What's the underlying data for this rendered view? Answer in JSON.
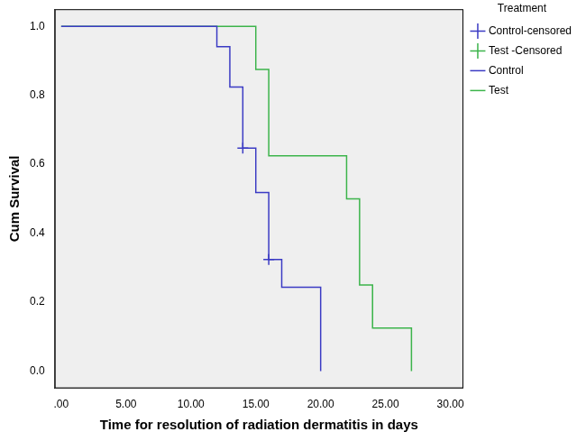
{
  "chart_data": {
    "type": "step",
    "x_label": "Time for resolution of radiation dermatitis in days",
    "y_label": "Cum Survival",
    "legend_title": "Treatment",
    "legend": "right",
    "grid": false,
    "xlim": [
      -0.5,
      31
    ],
    "xticks": [
      {
        "value": 0,
        "label": ".00"
      },
      {
        "value": 5,
        "label": "5.00"
      },
      {
        "value": 10,
        "label": "10.00"
      },
      {
        "value": 15,
        "label": "15.00"
      },
      {
        "value": 20,
        "label": "20.00"
      },
      {
        "value": 25,
        "label": "25.00"
      },
      {
        "value": 30,
        "label": "30.00"
      }
    ],
    "ylim": [
      -0.05,
      1.05
    ],
    "yticks": [
      {
        "value": 0,
        "label": "0.0"
      },
      0.2,
      0.4,
      0.6,
      0.8,
      {
        "value": 1,
        "label": "1.0"
      }
    ],
    "series": [
      {
        "name": "Control",
        "type": "step",
        "color": "#3b3bc4",
        "x": [
          0,
          12,
          13,
          14,
          15,
          16,
          17,
          20
        ],
        "values": [
          1,
          0.941,
          0.824,
          0.647,
          0.518,
          0.324,
          0.243,
          0
        ]
      },
      {
        "name": "Test",
        "type": "step",
        "color": "#3cb44b",
        "x": [
          0,
          15,
          16,
          22,
          23,
          24,
          27
        ],
        "values": [
          1,
          0.875,
          0.625,
          0.5,
          0.25,
          0.125,
          0
        ]
      },
      {
        "name": "Control-censored",
        "type": "scatter",
        "marker": "cross",
        "color": "#3b3bc4",
        "x": [
          14,
          16
        ],
        "values": [
          0.647,
          0.324
        ]
      },
      {
        "name": "Test -Censored",
        "type": "scatter",
        "marker": "cross",
        "color": "#3cb44b",
        "x": [],
        "values": []
      }
    ]
  }
}
